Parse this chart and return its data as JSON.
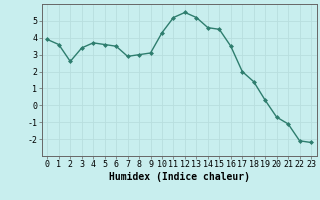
{
  "x": [
    0,
    1,
    2,
    3,
    4,
    5,
    6,
    7,
    8,
    9,
    10,
    11,
    12,
    13,
    14,
    15,
    16,
    17,
    18,
    19,
    20,
    21,
    22,
    23
  ],
  "y": [
    3.9,
    3.6,
    2.6,
    3.4,
    3.7,
    3.6,
    3.5,
    2.9,
    3.0,
    3.1,
    4.3,
    5.2,
    5.5,
    5.2,
    4.6,
    4.5,
    3.5,
    2.0,
    1.4,
    0.3,
    -0.7,
    -1.1,
    -2.1,
    -2.2
  ],
  "line_color": "#2e7d6e",
  "marker_color": "#2e7d6e",
  "bg_color": "#c8eeee",
  "grid_color": "#b8dede",
  "xlabel": "Humidex (Indice chaleur)",
  "ylim": [
    -3,
    6
  ],
  "xlim": [
    -0.5,
    23.5
  ],
  "yticks": [
    -2,
    -1,
    0,
    1,
    2,
    3,
    4,
    5
  ],
  "xticks": [
    0,
    1,
    2,
    3,
    4,
    5,
    6,
    7,
    8,
    9,
    10,
    11,
    12,
    13,
    14,
    15,
    16,
    17,
    18,
    19,
    20,
    21,
    22,
    23
  ],
  "tick_font_size": 6,
  "label_font_size": 7
}
